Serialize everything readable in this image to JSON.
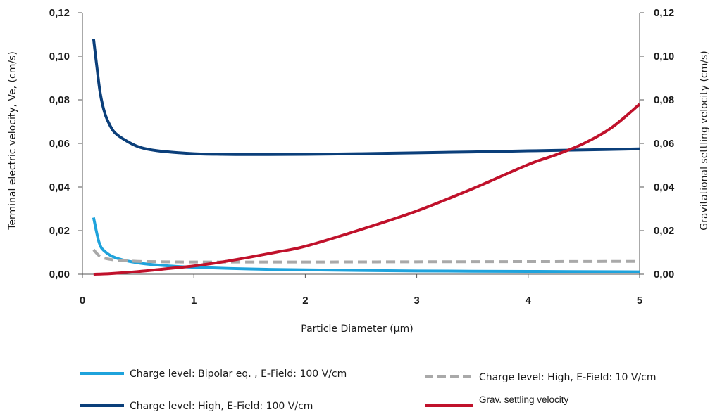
{
  "chart_data": {
    "type": "line",
    "xlabel": "Particle Diameter (µm)",
    "ylabel": "Terminal electric velocity, Ve, (cm/s)",
    "y2label": "Gravitational settling velocity (cm/s)",
    "xlim": [
      0,
      5
    ],
    "ylim": [
      0,
      0.12
    ],
    "y2lim": [
      0,
      0.12
    ],
    "x_ticks": [
      "0",
      "1",
      "2",
      "3",
      "4",
      "5"
    ],
    "y_ticks": [
      "0,00",
      "0,02",
      "0,04",
      "0,06",
      "0,08",
      "0,10",
      "0,12"
    ],
    "grid": false,
    "legend_position": "bottom",
    "series": [
      {
        "name": "Charge level: Bipolar eq. , E-Field: 100 V/cm",
        "color": "#1fa3dc",
        "dash": "solid",
        "axis": "left",
        "x": [
          0.1,
          0.15,
          0.2,
          0.3,
          0.5,
          0.75,
          1.0,
          1.5,
          2.0,
          3.0,
          4.0,
          5.0
        ],
        "y": [
          0.026,
          0.0145,
          0.0105,
          0.0075,
          0.0052,
          0.0039,
          0.0032,
          0.0024,
          0.002,
          0.0015,
          0.0013,
          0.0011
        ]
      },
      {
        "name": "Charge level: High, E-Field: 100 V/cm",
        "color": "#0b3f7a",
        "dash": "solid",
        "axis": "left",
        "x": [
          0.1,
          0.13,
          0.16,
          0.2,
          0.25,
          0.3,
          0.4,
          0.5,
          0.6,
          0.75,
          1.0,
          1.25,
          1.5,
          2.0,
          2.5,
          3.0,
          3.5,
          4.0,
          4.5,
          5.0
        ],
        "y": [
          0.108,
          0.095,
          0.083,
          0.074,
          0.068,
          0.0645,
          0.061,
          0.0585,
          0.0572,
          0.0562,
          0.0553,
          0.055,
          0.0549,
          0.055,
          0.0553,
          0.0557,
          0.0561,
          0.0566,
          0.057,
          0.0575
        ]
      },
      {
        "name": "Charge level: High, E-Field: 10 V/cm",
        "color": "#a9a9a9",
        "dash": "dashed",
        "axis": "left",
        "x": [
          0.1,
          0.15,
          0.2,
          0.3,
          0.5,
          0.75,
          1.0,
          1.5,
          2.0,
          3.0,
          4.0,
          5.0
        ],
        "y": [
          0.0112,
          0.0085,
          0.0073,
          0.0065,
          0.0059,
          0.0057,
          0.0056,
          0.0056,
          0.0056,
          0.0057,
          0.0058,
          0.0059
        ]
      },
      {
        "name": "Grav. settling velocity",
        "color": "#c0112b",
        "dash": "solid",
        "axis": "right",
        "x": [
          0.1,
          0.25,
          0.5,
          0.75,
          1.0,
          1.25,
          1.5,
          1.75,
          2.0,
          2.5,
          3.0,
          3.5,
          4.0,
          4.25,
          4.5,
          4.75,
          5.0
        ],
        "y": [
          0.0,
          0.0003,
          0.0012,
          0.0025,
          0.0038,
          0.0056,
          0.0078,
          0.0102,
          0.0128,
          0.0205,
          0.029,
          0.0392,
          0.0503,
          0.0548,
          0.06,
          0.0673,
          0.078
        ]
      }
    ]
  }
}
